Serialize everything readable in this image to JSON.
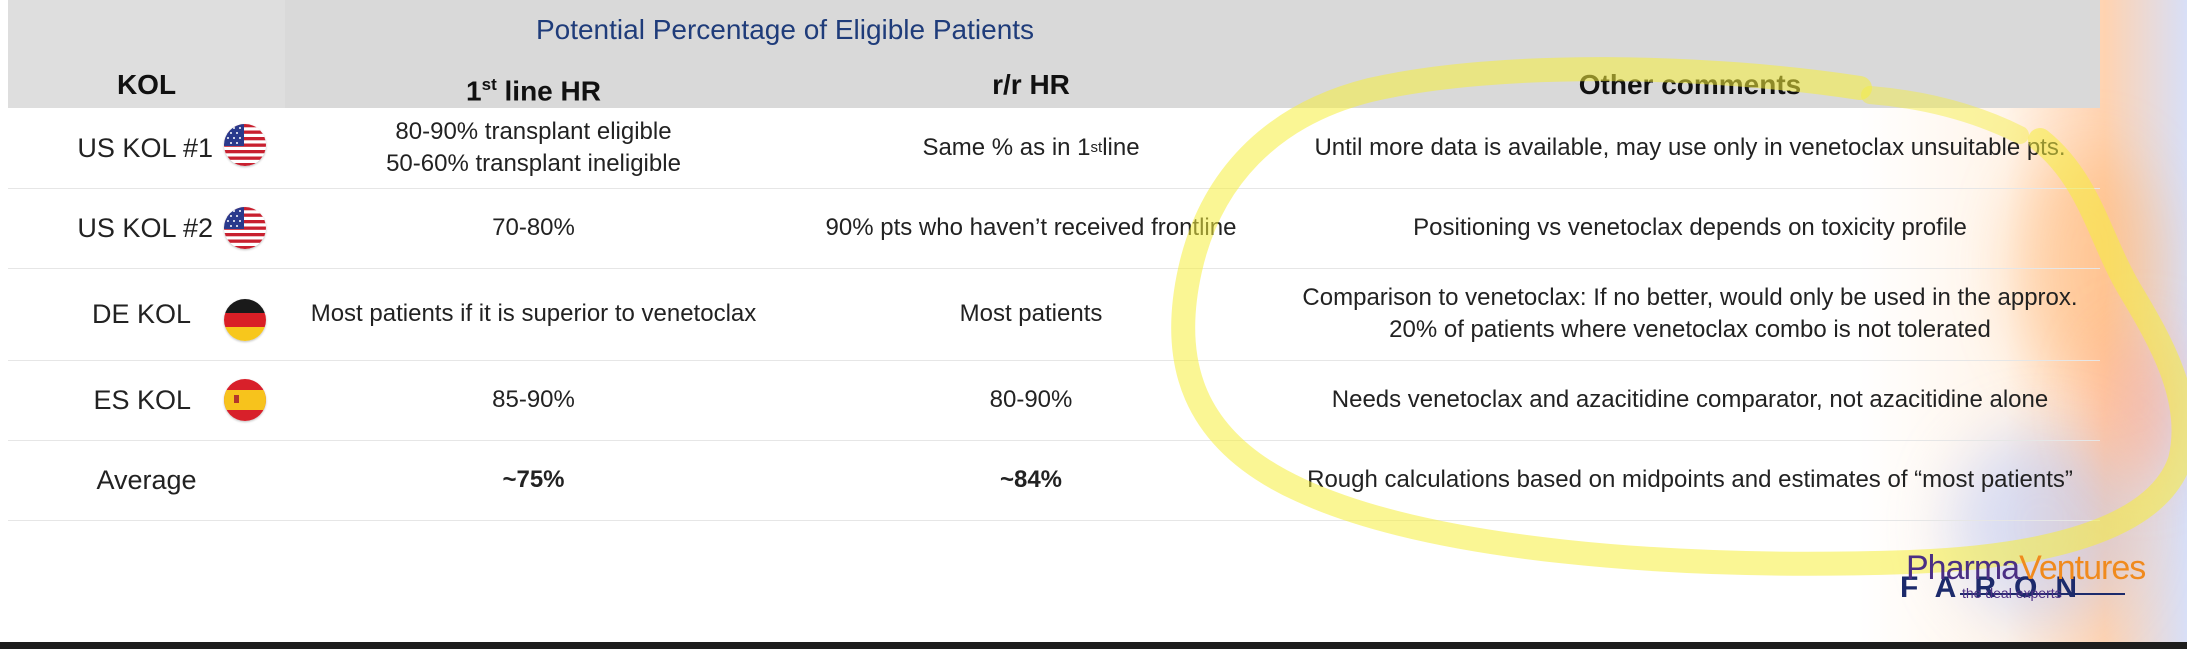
{
  "table": {
    "super_title": "Potential Percentage of Eligible Patients",
    "headers": {
      "kol": "KOL",
      "first_line_base": "1",
      "first_line_sup": "st",
      "first_line_rest": " line HR",
      "rr": "r/r HR",
      "comments": "Other comments"
    },
    "rows": [
      {
        "kol": "US KOL #1",
        "flag": "us-flag-icon",
        "first_line_a": "80-90% transplant eligible",
        "first_line_b": "50-60% transplant ineligible",
        "rr_base": "Same % as in 1",
        "rr_sup": "st",
        "rr_rest": " line",
        "comment": "Until more data is available, may use only in venetoclax unsuitable pts."
      },
      {
        "kol": "US KOL #2",
        "flag": "us-flag-icon",
        "first_line": "70-80%",
        "rr": "90% pts who haven’t received frontline",
        "comment": "Positioning vs venetoclax depends on toxicity profile"
      },
      {
        "kol": "DE KOL",
        "flag": "germany-flag-icon",
        "first_line": "Most patients if it is superior to venetoclax",
        "rr": "Most patients",
        "comment_a": "Comparison to venetoclax: If no better, would only be used in the approx.",
        "comment_b": "20% of patients where venetoclax combo is not tolerated"
      },
      {
        "kol": "ES KOL",
        "flag": "spain-flag-icon",
        "first_line": "85-90%",
        "rr": "80-90%",
        "comment": "Needs venetoclax and azacitidine  comparator, not azacitidine alone"
      },
      {
        "kol": "Average",
        "first_line": "~75%",
        "rr": "~84%",
        "comment": "Rough calculations based on midpoints and estimates of “most patients”"
      }
    ]
  },
  "logo": {
    "pharma": "Pharma",
    "ventures": "Ventures",
    "tagline": "the deal experts",
    "faron": "FARON"
  },
  "colors": {
    "header_bg": "#d9d9d9",
    "title_blue": "#1f3c7a",
    "highlight_yellow": "#f5ee3c"
  }
}
